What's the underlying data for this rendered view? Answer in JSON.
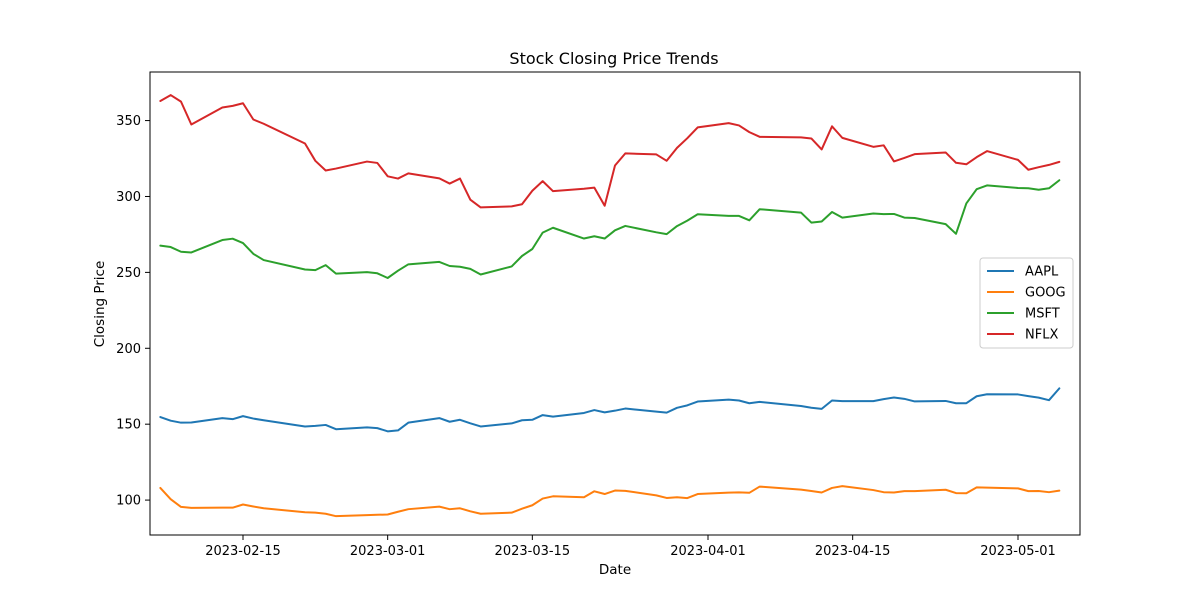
{
  "chart_data": {
    "type": "line",
    "title": "Stock Closing Price Trends",
    "xlabel": "Date",
    "ylabel": "Closing Price",
    "x_is_date": true,
    "xlim": [
      "2023-02-06",
      "2023-05-07"
    ],
    "ylim": [
      77,
      382
    ],
    "xticks": [
      {
        "date": "2023-02-15",
        "label": "2023-02-15"
      },
      {
        "date": "2023-03-01",
        "label": "2023-03-01"
      },
      {
        "date": "2023-03-15",
        "label": "2023-03-15"
      },
      {
        "date": "2023-04-01",
        "label": "2023-04-01"
      },
      {
        "date": "2023-04-15",
        "label": "2023-04-15"
      },
      {
        "date": "2023-05-01",
        "label": "2023-05-01"
      }
    ],
    "yticks": [
      100,
      150,
      200,
      250,
      300,
      350
    ],
    "grid": false,
    "legend_position": "center-right",
    "series": [
      {
        "name": "AAPL",
        "color": "#1f77b4",
        "points": [
          [
            "2023-02-07",
            154.7
          ],
          [
            "2023-02-08",
            152.3
          ],
          [
            "2023-02-09",
            151.0
          ],
          [
            "2023-02-10",
            151.1
          ],
          [
            "2023-02-13",
            154.0
          ],
          [
            "2023-02-14",
            153.3
          ],
          [
            "2023-02-15",
            155.3
          ],
          [
            "2023-02-16",
            153.7
          ],
          [
            "2023-02-17",
            152.6
          ],
          [
            "2023-02-21",
            148.5
          ],
          [
            "2023-02-22",
            148.9
          ],
          [
            "2023-02-23",
            149.5
          ],
          [
            "2023-02-24",
            146.7
          ],
          [
            "2023-02-27",
            147.9
          ],
          [
            "2023-02-28",
            147.4
          ],
          [
            "2023-03-01",
            145.3
          ],
          [
            "2023-03-02",
            145.9
          ],
          [
            "2023-03-03",
            151.0
          ],
          [
            "2023-03-06",
            154.0
          ],
          [
            "2023-03-07",
            151.6
          ],
          [
            "2023-03-08",
            152.9
          ],
          [
            "2023-03-09",
            150.6
          ],
          [
            "2023-03-10",
            148.5
          ],
          [
            "2023-03-13",
            150.5
          ],
          [
            "2023-03-14",
            152.6
          ],
          [
            "2023-03-15",
            152.9
          ],
          [
            "2023-03-16",
            156.0
          ],
          [
            "2023-03-17",
            155.0
          ],
          [
            "2023-03-20",
            157.4
          ],
          [
            "2023-03-21",
            159.3
          ],
          [
            "2023-03-22",
            157.8
          ],
          [
            "2023-03-23",
            158.9
          ],
          [
            "2023-03-24",
            160.3
          ],
          [
            "2023-03-27",
            158.3
          ],
          [
            "2023-03-28",
            157.6
          ],
          [
            "2023-03-29",
            160.8
          ],
          [
            "2023-03-30",
            162.4
          ],
          [
            "2023-03-31",
            164.9
          ],
          [
            "2023-04-03",
            166.2
          ],
          [
            "2023-04-04",
            165.6
          ],
          [
            "2023-04-05",
            163.8
          ],
          [
            "2023-04-06",
            164.7
          ],
          [
            "2023-04-10",
            162.0
          ],
          [
            "2023-04-11",
            160.8
          ],
          [
            "2023-04-12",
            160.1
          ],
          [
            "2023-04-13",
            165.6
          ],
          [
            "2023-04-14",
            165.2
          ],
          [
            "2023-04-17",
            165.2
          ],
          [
            "2023-04-18",
            166.5
          ],
          [
            "2023-04-19",
            167.6
          ],
          [
            "2023-04-20",
            166.7
          ],
          [
            "2023-04-21",
            165.0
          ],
          [
            "2023-04-24",
            165.3
          ],
          [
            "2023-04-25",
            163.8
          ],
          [
            "2023-04-26",
            163.8
          ],
          [
            "2023-04-27",
            168.4
          ],
          [
            "2023-04-28",
            169.7
          ],
          [
            "2023-05-01",
            169.6
          ],
          [
            "2023-05-02",
            168.5
          ],
          [
            "2023-05-03",
            167.5
          ],
          [
            "2023-05-04",
            165.8
          ],
          [
            "2023-05-05",
            173.6
          ]
        ]
      },
      {
        "name": "GOOG",
        "color": "#ff7f0e",
        "points": [
          [
            "2023-02-07",
            108.0
          ],
          [
            "2023-02-08",
            100.6
          ],
          [
            "2023-02-09",
            95.5
          ],
          [
            "2023-02-10",
            94.9
          ],
          [
            "2023-02-13",
            95.0
          ],
          [
            "2023-02-14",
            95.0
          ],
          [
            "2023-02-15",
            97.1
          ],
          [
            "2023-02-16",
            95.8
          ],
          [
            "2023-02-17",
            94.6
          ],
          [
            "2023-02-21",
            92.0
          ],
          [
            "2023-02-22",
            91.7
          ],
          [
            "2023-02-23",
            91.0
          ],
          [
            "2023-02-24",
            89.4
          ],
          [
            "2023-02-27",
            90.1
          ],
          [
            "2023-02-28",
            90.3
          ],
          [
            "2023-03-01",
            90.5
          ],
          [
            "2023-03-02",
            92.3
          ],
          [
            "2023-03-03",
            94.0
          ],
          [
            "2023-03-06",
            95.7
          ],
          [
            "2023-03-07",
            94.0
          ],
          [
            "2023-03-08",
            94.6
          ],
          [
            "2023-03-09",
            92.6
          ],
          [
            "2023-03-10",
            91.0
          ],
          [
            "2023-03-13",
            91.7
          ],
          [
            "2023-03-14",
            94.3
          ],
          [
            "2023-03-15",
            96.6
          ],
          [
            "2023-03-16",
            101.0
          ],
          [
            "2023-03-17",
            102.5
          ],
          [
            "2023-03-20",
            101.9
          ],
          [
            "2023-03-21",
            105.8
          ],
          [
            "2023-03-22",
            104.0
          ],
          [
            "2023-03-23",
            106.3
          ],
          [
            "2023-03-24",
            106.1
          ],
          [
            "2023-03-27",
            103.1
          ],
          [
            "2023-03-28",
            101.4
          ],
          [
            "2023-03-29",
            101.9
          ],
          [
            "2023-03-30",
            101.3
          ],
          [
            "2023-03-31",
            104.0
          ],
          [
            "2023-04-03",
            104.9
          ],
          [
            "2023-04-04",
            105.1
          ],
          [
            "2023-04-05",
            104.8
          ],
          [
            "2023-04-06",
            108.9
          ],
          [
            "2023-04-10",
            106.9
          ],
          [
            "2023-04-11",
            106.0
          ],
          [
            "2023-04-12",
            105.0
          ],
          [
            "2023-04-13",
            108.0
          ],
          [
            "2023-04-14",
            109.2
          ],
          [
            "2023-04-17",
            106.6
          ],
          [
            "2023-04-18",
            105.2
          ],
          [
            "2023-04-19",
            105.0
          ],
          [
            "2023-04-20",
            105.9
          ],
          [
            "2023-04-21",
            105.9
          ],
          [
            "2023-04-24",
            106.8
          ],
          [
            "2023-04-25",
            104.6
          ],
          [
            "2023-04-26",
            104.5
          ],
          [
            "2023-04-27",
            108.4
          ],
          [
            "2023-04-28",
            108.2
          ],
          [
            "2023-05-01",
            107.7
          ],
          [
            "2023-05-02",
            105.9
          ],
          [
            "2023-05-03",
            106.0
          ],
          [
            "2023-05-04",
            105.2
          ],
          [
            "2023-05-05",
            106.2
          ]
        ]
      },
      {
        "name": "MSFT",
        "color": "#2ca02c",
        "points": [
          [
            "2023-02-07",
            267.6
          ],
          [
            "2023-02-08",
            266.7
          ],
          [
            "2023-02-09",
            263.6
          ],
          [
            "2023-02-10",
            263.1
          ],
          [
            "2023-02-13",
            271.3
          ],
          [
            "2023-02-14",
            272.2
          ],
          [
            "2023-02-15",
            269.3
          ],
          [
            "2023-02-16",
            262.2
          ],
          [
            "2023-02-17",
            258.1
          ],
          [
            "2023-02-21",
            251.9
          ],
          [
            "2023-02-22",
            251.5
          ],
          [
            "2023-02-23",
            254.8
          ],
          [
            "2023-02-24",
            249.2
          ],
          [
            "2023-02-27",
            250.2
          ],
          [
            "2023-02-28",
            249.4
          ],
          [
            "2023-03-01",
            246.3
          ],
          [
            "2023-03-02",
            251.1
          ],
          [
            "2023-03-03",
            255.3
          ],
          [
            "2023-03-06",
            256.9
          ],
          [
            "2023-03-07",
            254.2
          ],
          [
            "2023-03-08",
            253.7
          ],
          [
            "2023-03-09",
            252.3
          ],
          [
            "2023-03-10",
            248.6
          ],
          [
            "2023-03-13",
            253.9
          ],
          [
            "2023-03-14",
            260.8
          ],
          [
            "2023-03-15",
            265.4
          ],
          [
            "2023-03-16",
            276.2
          ],
          [
            "2023-03-17",
            279.4
          ],
          [
            "2023-03-20",
            272.3
          ],
          [
            "2023-03-21",
            273.8
          ],
          [
            "2023-03-22",
            272.3
          ],
          [
            "2023-03-23",
            277.7
          ],
          [
            "2023-03-24",
            280.6
          ],
          [
            "2023-03-27",
            276.4
          ],
          [
            "2023-03-28",
            275.2
          ],
          [
            "2023-03-29",
            280.5
          ],
          [
            "2023-03-30",
            284.1
          ],
          [
            "2023-03-31",
            288.3
          ],
          [
            "2023-04-03",
            287.2
          ],
          [
            "2023-04-04",
            287.2
          ],
          [
            "2023-04-05",
            284.3
          ],
          [
            "2023-04-06",
            291.6
          ],
          [
            "2023-04-10",
            289.4
          ],
          [
            "2023-04-11",
            282.8
          ],
          [
            "2023-04-12",
            283.5
          ],
          [
            "2023-04-13",
            289.8
          ],
          [
            "2023-04-14",
            286.1
          ],
          [
            "2023-04-17",
            288.8
          ],
          [
            "2023-04-18",
            288.4
          ],
          [
            "2023-04-19",
            288.5
          ],
          [
            "2023-04-20",
            286.1
          ],
          [
            "2023-04-21",
            285.8
          ],
          [
            "2023-04-24",
            281.8
          ],
          [
            "2023-04-25",
            275.4
          ],
          [
            "2023-04-26",
            295.4
          ],
          [
            "2023-04-27",
            304.8
          ],
          [
            "2023-04-28",
            307.3
          ],
          [
            "2023-05-01",
            305.6
          ],
          [
            "2023-05-02",
            305.4
          ],
          [
            "2023-05-03",
            304.4
          ],
          [
            "2023-05-04",
            305.4
          ],
          [
            "2023-05-05",
            310.7
          ]
        ]
      },
      {
        "name": "NFLX",
        "color": "#d62728",
        "points": [
          [
            "2023-02-07",
            362.9
          ],
          [
            "2023-02-08",
            366.8
          ],
          [
            "2023-02-09",
            362.5
          ],
          [
            "2023-02-10",
            347.4
          ],
          [
            "2023-02-13",
            358.6
          ],
          [
            "2023-02-14",
            359.7
          ],
          [
            "2023-02-15",
            361.4
          ],
          [
            "2023-02-16",
            350.7
          ],
          [
            "2023-02-17",
            347.9
          ],
          [
            "2023-02-21",
            334.9
          ],
          [
            "2023-02-22",
            323.5
          ],
          [
            "2023-02-23",
            317.1
          ],
          [
            "2023-02-24",
            318.4
          ],
          [
            "2023-02-27",
            323.0
          ],
          [
            "2023-02-28",
            322.1
          ],
          [
            "2023-03-01",
            313.3
          ],
          [
            "2023-03-02",
            311.8
          ],
          [
            "2023-03-03",
            315.2
          ],
          [
            "2023-03-06",
            311.9
          ],
          [
            "2023-03-07",
            308.5
          ],
          [
            "2023-03-08",
            311.8
          ],
          [
            "2023-03-09",
            297.9
          ],
          [
            "2023-03-10",
            292.8
          ],
          [
            "2023-03-13",
            293.5
          ],
          [
            "2023-03-14",
            294.9
          ],
          [
            "2023-03-15",
            303.8
          ],
          [
            "2023-03-16",
            310.1
          ],
          [
            "2023-03-17",
            303.5
          ],
          [
            "2023-03-20",
            305.1
          ],
          [
            "2023-03-21",
            305.8
          ],
          [
            "2023-03-22",
            293.9
          ],
          [
            "2023-03-23",
            320.4
          ],
          [
            "2023-03-24",
            328.4
          ],
          [
            "2023-03-27",
            327.7
          ],
          [
            "2023-03-28",
            323.5
          ],
          [
            "2023-03-29",
            332.0
          ],
          [
            "2023-03-30",
            338.4
          ],
          [
            "2023-03-31",
            345.5
          ],
          [
            "2023-04-03",
            348.3
          ],
          [
            "2023-04-04",
            346.8
          ],
          [
            "2023-04-05",
            342.4
          ],
          [
            "2023-04-06",
            339.3
          ],
          [
            "2023-04-10",
            338.9
          ],
          [
            "2023-04-11",
            338.2
          ],
          [
            "2023-04-12",
            331.0
          ],
          [
            "2023-04-13",
            346.2
          ],
          [
            "2023-04-14",
            338.6
          ],
          [
            "2023-04-17",
            332.7
          ],
          [
            "2023-04-18",
            333.7
          ],
          [
            "2023-04-19",
            323.1
          ],
          [
            "2023-04-20",
            325.4
          ],
          [
            "2023-04-21",
            327.9
          ],
          [
            "2023-04-24",
            329.0
          ],
          [
            "2023-04-25",
            322.2
          ],
          [
            "2023-04-26",
            321.2
          ],
          [
            "2023-04-27",
            325.9
          ],
          [
            "2023-04-28",
            329.9
          ],
          [
            "2023-05-01",
            324.1
          ],
          [
            "2023-05-02",
            317.6
          ],
          [
            "2023-05-03",
            319.3
          ],
          [
            "2023-05-04",
            320.8
          ],
          [
            "2023-05-05",
            322.8
          ]
        ]
      }
    ]
  }
}
